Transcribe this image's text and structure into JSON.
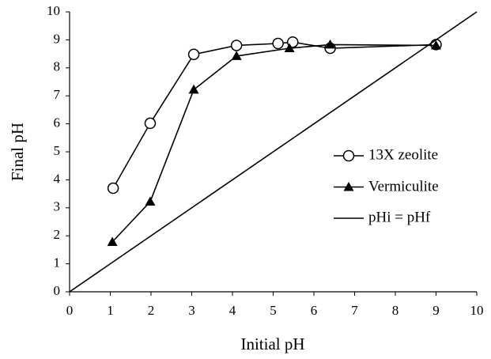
{
  "chart_data": {
    "type": "line",
    "xlabel": "Initial pH",
    "ylabel": "Final pH",
    "xlim": [
      0,
      10
    ],
    "ylim": [
      0,
      10
    ],
    "xticks": [
      0,
      1,
      2,
      3,
      4,
      5,
      6,
      7,
      8,
      9,
      10
    ],
    "yticks": [
      0,
      1,
      2,
      3,
      4,
      5,
      6,
      7,
      8,
      9,
      10
    ],
    "grid": false,
    "legend": "right",
    "series": [
      {
        "name": "13X zeolite",
        "color": "#000000",
        "marker": "open-circle",
        "x": [
          1.07,
          1.98,
          3.05,
          4.1,
          5.12,
          5.48,
          6.4,
          9.0
        ],
        "values": [
          3.7,
          6.02,
          8.48,
          8.8,
          8.87,
          8.92,
          8.7,
          8.83
        ]
      },
      {
        "name": "Vermiculite",
        "color": "#000000",
        "marker": "filled-triangle",
        "x": [
          1.05,
          1.98,
          3.05,
          4.1,
          5.4,
          6.4,
          9.0
        ],
        "values": [
          1.78,
          3.22,
          7.22,
          8.42,
          8.7,
          8.83,
          8.8
        ]
      },
      {
        "name": "pHi = pHf",
        "color": "#000000",
        "marker": "none",
        "x": [
          0,
          10
        ],
        "values": [
          0,
          10
        ]
      }
    ]
  }
}
